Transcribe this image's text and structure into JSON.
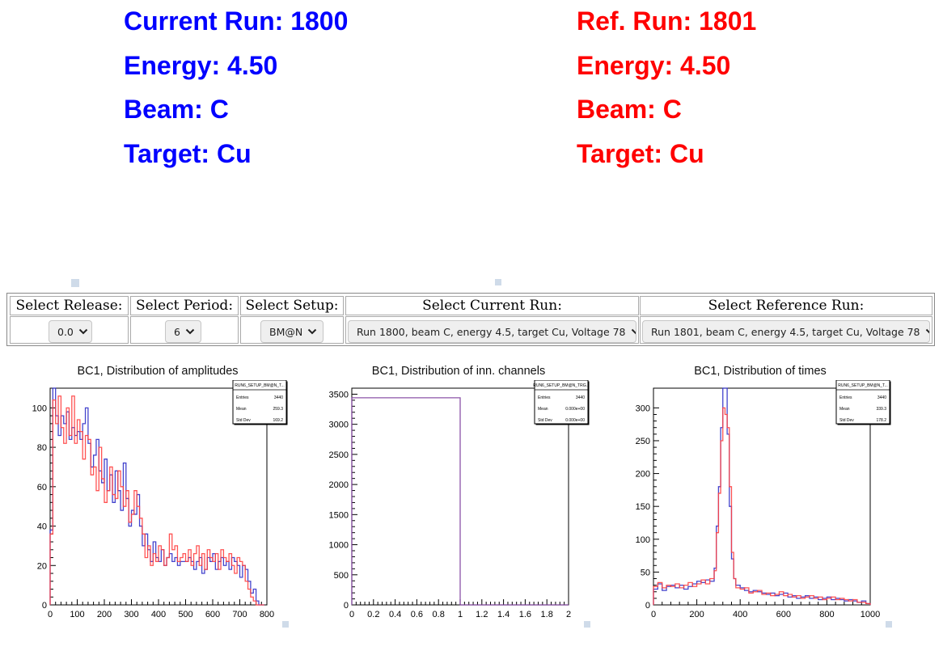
{
  "current_run": {
    "title": "Current Run: 1800",
    "energy": "Energy: 4.50",
    "beam": "Beam: C",
    "target": "Target: Cu",
    "color": "#0000ff"
  },
  "reference_run": {
    "title": "Ref. Run: 1801",
    "energy": "Energy: 4.50",
    "beam": "Beam: C",
    "target": "Target: Cu",
    "color": "#ff0000"
  },
  "selectors": {
    "release": {
      "header": "Select Release:",
      "value": "0.0"
    },
    "period": {
      "header": "Select Period:",
      "value": "6"
    },
    "setup": {
      "header": "Select Setup:",
      "value": "BM@N"
    },
    "current_run": {
      "header": "Select Current Run:",
      "value": "Run 1800, beam C, energy 4.5, target Cu, Voltage 78"
    },
    "reference_run": {
      "header": "Select Reference Run:",
      "value": "Run 1801, beam C, energy 4.5, target Cu, Voltage 78"
    }
  },
  "chart_data": [
    {
      "type": "line",
      "title": "BC1, Distribution of amplitudes",
      "xlim": [
        0,
        800
      ],
      "ylim": [
        0,
        110
      ],
      "xticks": [
        0,
        100,
        200,
        300,
        400,
        500,
        600,
        700,
        800
      ],
      "yticks": [
        0,
        20,
        40,
        60,
        80,
        100
      ],
      "stats": {
        "name": "RUN6_SETUP_BM@N_T...",
        "rows": [
          [
            "Entries",
            "3440"
          ],
          [
            "Mean",
            "259.3"
          ],
          [
            "Std Dev",
            "169.2"
          ]
        ]
      },
      "series": [
        {
          "color": "#3030c8",
          "x": [
            0,
            10,
            20,
            30,
            40,
            50,
            60,
            70,
            80,
            90,
            100,
            110,
            120,
            130,
            140,
            150,
            160,
            170,
            180,
            190,
            200,
            210,
            220,
            230,
            240,
            250,
            260,
            270,
            280,
            290,
            300,
            310,
            320,
            330,
            340,
            350,
            360,
            370,
            380,
            390,
            400,
            410,
            420,
            430,
            440,
            450,
            460,
            470,
            480,
            490,
            500,
            510,
            520,
            530,
            540,
            550,
            560,
            570,
            580,
            590,
            600,
            610,
            620,
            630,
            640,
            650,
            660,
            670,
            680,
            690,
            700,
            710,
            720,
            730,
            740,
            750,
            760,
            770,
            780
          ],
          "y": [
            38,
            110,
            96,
            86,
            96,
            92,
            98,
            84,
            90,
            86,
            88,
            84,
            92,
            100,
            82,
            70,
            76,
            84,
            68,
            62,
            74,
            58,
            66,
            52,
            68,
            58,
            48,
            72,
            54,
            40,
            48,
            46,
            56,
            40,
            30,
            36,
            28,
            22,
            32,
            24,
            22,
            28,
            20,
            24,
            26,
            22,
            24,
            20,
            22,
            22,
            22,
            24,
            22,
            18,
            22,
            24,
            16,
            18,
            24,
            22,
            26,
            18,
            22,
            24,
            20,
            22,
            18,
            24,
            22,
            20,
            14,
            20,
            18,
            12,
            6,
            8,
            2,
            0,
            0
          ]
        },
        {
          "color": "#ff4040",
          "x": [
            0,
            10,
            20,
            30,
            40,
            50,
            60,
            70,
            80,
            90,
            100,
            110,
            120,
            130,
            140,
            150,
            160,
            170,
            180,
            190,
            200,
            210,
            220,
            230,
            240,
            250,
            260,
            270,
            280,
            290,
            300,
            310,
            320,
            330,
            340,
            350,
            360,
            370,
            380,
            390,
            400,
            410,
            420,
            430,
            440,
            450,
            460,
            470,
            480,
            490,
            500,
            510,
            520,
            530,
            540,
            550,
            560,
            570,
            580,
            590,
            600,
            610,
            620,
            630,
            640,
            650,
            660,
            670,
            680,
            690,
            700,
            710,
            720,
            730,
            740,
            750,
            760,
            770,
            780
          ],
          "y": [
            36,
            104,
            92,
            106,
            90,
            82,
            100,
            86,
            106,
            82,
            94,
            88,
            74,
            86,
            84,
            66,
            70,
            58,
            80,
            64,
            52,
            58,
            70,
            56,
            54,
            68,
            60,
            50,
            58,
            42,
            46,
            58,
            50,
            44,
            36,
            24,
            30,
            20,
            26,
            22,
            30,
            28,
            20,
            24,
            36,
            28,
            30,
            22,
            24,
            26,
            22,
            28,
            20,
            26,
            30,
            20,
            26,
            18,
            28,
            24,
            22,
            26,
            18,
            28,
            24,
            22,
            26,
            20,
            16,
            24,
            22,
            20,
            12,
            8,
            4,
            2,
            0,
            0,
            0
          ]
        }
      ]
    },
    {
      "type": "line",
      "title": "BC1, Distribution of inn. channels",
      "xlim": [
        0,
        2
      ],
      "ylim": [
        0,
        3600
      ],
      "xticks": [
        0,
        0.2,
        0.4,
        0.6,
        0.8,
        1,
        1.2,
        1.4,
        1.6,
        1.8,
        2
      ],
      "yticks": [
        0,
        500,
        1000,
        1500,
        2000,
        2500,
        3000,
        3500
      ],
      "stats": {
        "name": "RUN6_SETUP_BM@N_TRG...",
        "rows": [
          [
            "Entries",
            "3440"
          ],
          [
            "Mean",
            "0.000e+00"
          ],
          [
            "Std Dev",
            "0.000e+00"
          ]
        ]
      },
      "series": [
        {
          "color": "#8040a0",
          "x": [
            0,
            1
          ],
          "y": [
            3440,
            0
          ]
        }
      ]
    },
    {
      "type": "line",
      "title": "BC1, Distribution of times",
      "xlim": [
        0,
        1000
      ],
      "ylim": [
        0,
        330
      ],
      "xticks": [
        0,
        200,
        400,
        600,
        800,
        1000
      ],
      "yticks": [
        0,
        50,
        100,
        150,
        200,
        250,
        300
      ],
      "stats": {
        "name": "RUN6_SETUP_BM@N_T...",
        "rows": [
          [
            "Entries",
            "3440"
          ],
          [
            "Mean",
            "339.3"
          ],
          [
            "Std Dev",
            "178.2"
          ]
        ]
      },
      "series": [
        {
          "color": "#3030c8",
          "x": [
            0,
            20,
            40,
            60,
            80,
            100,
            120,
            140,
            160,
            180,
            200,
            220,
            240,
            260,
            280,
            290,
            300,
            310,
            320,
            330,
            340,
            350,
            360,
            370,
            380,
            400,
            420,
            440,
            460,
            480,
            500,
            520,
            540,
            560,
            580,
            600,
            620,
            640,
            660,
            680,
            700,
            720,
            740,
            760,
            780,
            800,
            820,
            840,
            860,
            880,
            900,
            920,
            940,
            960,
            980
          ],
          "y": [
            24,
            32,
            22,
            28,
            30,
            26,
            30,
            24,
            28,
            32,
            36,
            34,
            38,
            36,
            56,
            120,
            180,
            270,
            330,
            330,
            260,
            150,
            70,
            40,
            30,
            26,
            22,
            20,
            22,
            20,
            18,
            16,
            18,
            14,
            16,
            18,
            12,
            14,
            10,
            12,
            14,
            10,
            12,
            8,
            10,
            12,
            8,
            10,
            8,
            6,
            8,
            6,
            4,
            6,
            2
          ]
        },
        {
          "color": "#ff4040",
          "x": [
            0,
            20,
            40,
            60,
            80,
            100,
            120,
            140,
            160,
            180,
            200,
            220,
            240,
            260,
            280,
            290,
            300,
            310,
            320,
            330,
            340,
            350,
            360,
            370,
            380,
            400,
            420,
            440,
            460,
            480,
            500,
            520,
            540,
            560,
            580,
            600,
            620,
            640,
            660,
            680,
            700,
            720,
            740,
            760,
            780,
            800,
            820,
            840,
            860,
            880,
            900,
            920,
            940,
            960,
            980
          ],
          "y": [
            28,
            34,
            26,
            30,
            28,
            32,
            26,
            30,
            34,
            28,
            32,
            38,
            32,
            40,
            52,
            110,
            170,
            250,
            300,
            290,
            270,
            180,
            80,
            40,
            26,
            24,
            26,
            18,
            20,
            22,
            16,
            18,
            14,
            16,
            20,
            14,
            16,
            12,
            14,
            10,
            12,
            14,
            10,
            12,
            8,
            10,
            12,
            8,
            10,
            8,
            6,
            8,
            4,
            4,
            2
          ]
        }
      ]
    }
  ]
}
